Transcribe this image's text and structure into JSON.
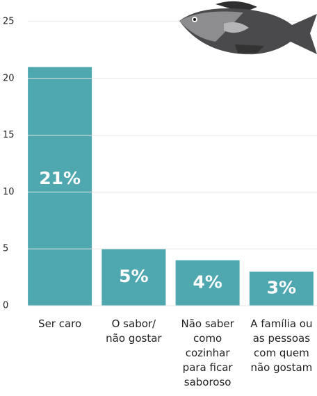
{
  "chart_data": {
    "type": "bar",
    "categories": [
      "Ser caro",
      "O sabor/ não gostar",
      "Não saber como cozinhar para ficar saboroso",
      "A família ou as pessoas com quem não gostam"
    ],
    "values": [
      21,
      5,
      4,
      3
    ],
    "value_labels": [
      "21%",
      "5%",
      "4%",
      "3%"
    ],
    "color": "#4fa8b0",
    "ylim": [
      0,
      25
    ],
    "yticks": [
      0,
      5,
      10,
      15,
      20,
      25
    ],
    "grid": true
  }
}
